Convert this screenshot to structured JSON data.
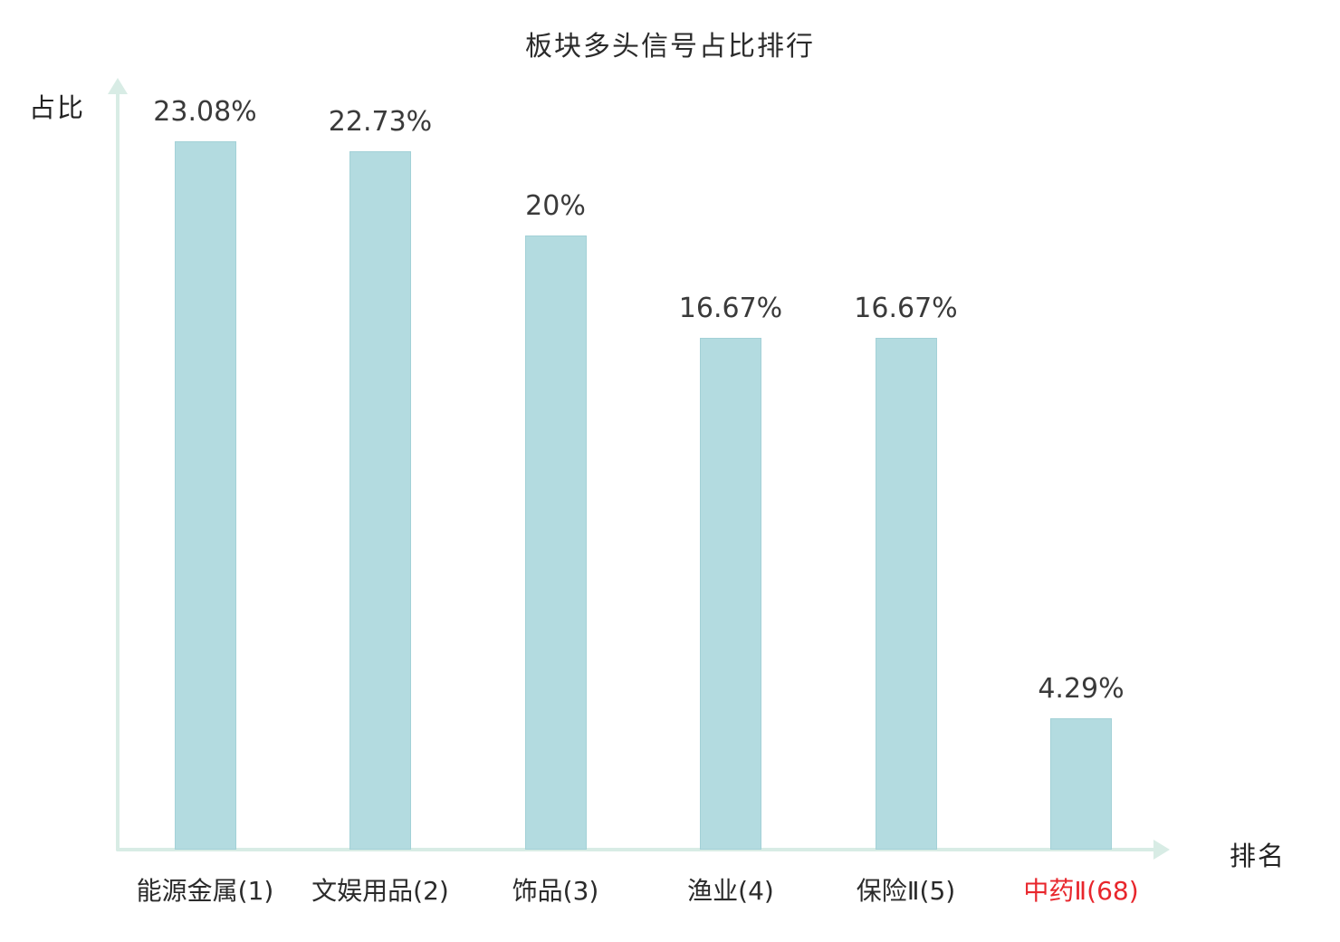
{
  "chart": {
    "title": "板块多头信号占比排行",
    "ylabel": "占比",
    "xlabel": "排名"
  },
  "chart_data": {
    "type": "bar",
    "categories": [
      "能源金属(1)",
      "文娱用品(2)",
      "饰品(3)",
      "渔业(4)",
      "保险Ⅱ(5)",
      "中药Ⅱ(68)"
    ],
    "values": [
      23.08,
      22.73,
      20,
      16.67,
      16.67,
      4.29
    ],
    "value_labels": [
      "23.08%",
      "22.73%",
      "20%",
      "16.67%",
      "16.67%",
      "4.29%"
    ],
    "title": "板块多头信号占比排行",
    "xlabel": "排名",
    "ylabel": "占比",
    "ylim": [
      0,
      25
    ],
    "grid": false,
    "legend": "none",
    "bar_color": "#b3dbe0",
    "bar_border_color": "#a3d1d7",
    "axis_color": "#d8ece5",
    "label_color": "#3a3a3a",
    "highlight_index": 5,
    "highlight_label_color": "#e8262c"
  }
}
